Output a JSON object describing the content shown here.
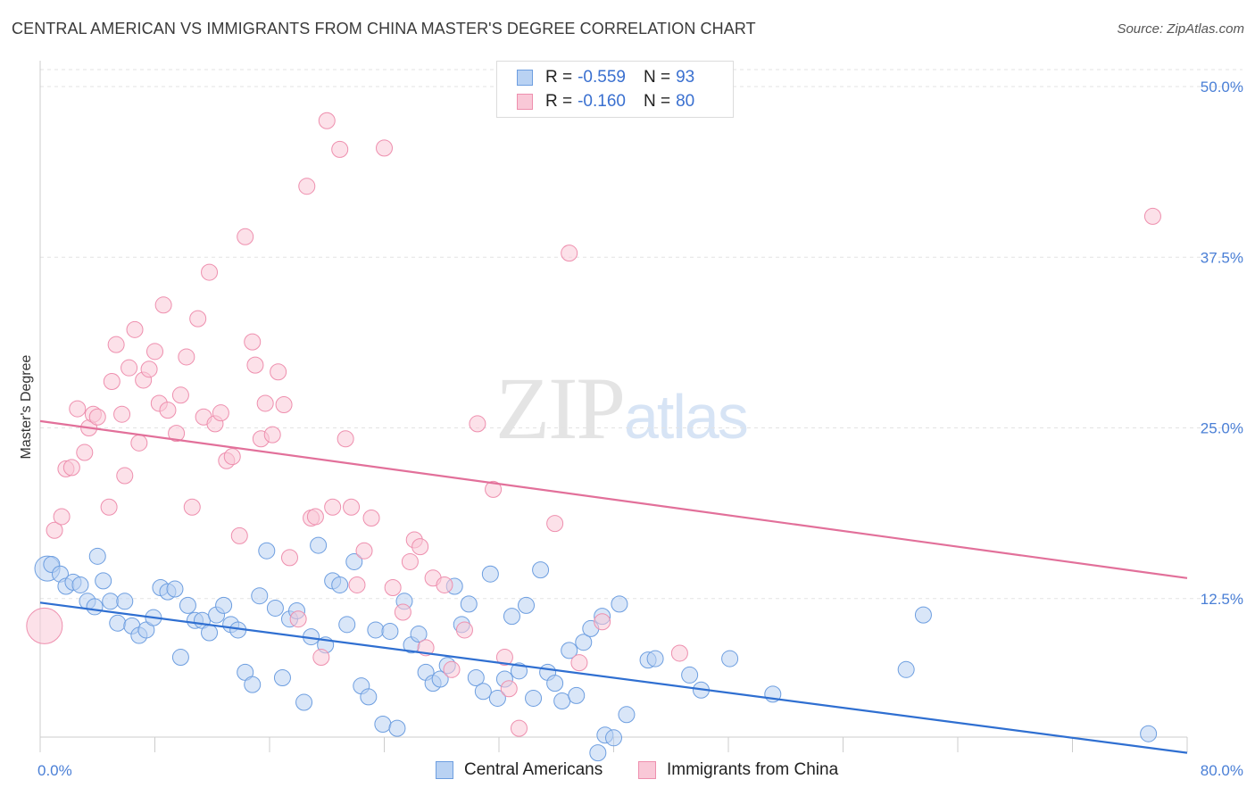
{
  "title": "CENTRAL AMERICAN VS IMMIGRANTS FROM CHINA MASTER'S DEGREE CORRELATION CHART",
  "source": "Source: ZipAtlas.com",
  "watermark": {
    "zip": "ZIP",
    "atlas": "atlas"
  },
  "legend_top": [
    {
      "r_label": "R =",
      "r_value": "-0.559",
      "n_label": "N =",
      "n_value": "93",
      "fill": "#b9d2f3",
      "stroke": "#6d9ee0"
    },
    {
      "r_label": "R =",
      "r_value": "-0.160",
      "n_label": "N =",
      "n_value": "80",
      "fill": "#f9c8d7",
      "stroke": "#ee8fae"
    }
  ],
  "legend_bottom": [
    {
      "label": "Central Americans",
      "fill": "#b9d2f3",
      "stroke": "#6d9ee0"
    },
    {
      "label": "Immigrants from China",
      "fill": "#f9c8d7",
      "stroke": "#ee8fae"
    }
  ],
  "chart_data": {
    "type": "scatter",
    "ylabel": "Master's Degree",
    "xlim": [
      0,
      80
    ],
    "ylim": [
      0,
      50
    ],
    "x_tick_labels": [
      {
        "value": 0,
        "label": "0.0%"
      },
      {
        "value": 80,
        "label": "80.0%"
      }
    ],
    "x_ticks": [
      0,
      8,
      16,
      24,
      32,
      40,
      48,
      56,
      64,
      72,
      80
    ],
    "y_ticks": [
      {
        "value": 12.5,
        "label": "12.5%"
      },
      {
        "value": 25.0,
        "label": "25.0%"
      },
      {
        "value": 37.5,
        "label": "37.5%"
      },
      {
        "value": 50.0,
        "label": "50.0%"
      }
    ],
    "grid": true,
    "series": [
      {
        "name": "Central Americans",
        "color": "#6d9ee0",
        "fill": "#b9d2f3",
        "trend": {
          "x": [
            0,
            80
          ],
          "y": [
            12.2,
            1.2
          ]
        },
        "points": [
          [
            0.5,
            14.7
          ],
          [
            0.8,
            15.0
          ],
          [
            1.4,
            14.3
          ],
          [
            1.8,
            13.4
          ],
          [
            2.3,
            13.7
          ],
          [
            2.8,
            13.5
          ],
          [
            3.3,
            12.3
          ],
          [
            3.8,
            11.9
          ],
          [
            4.4,
            13.8
          ],
          [
            4.9,
            12.3
          ],
          [
            5.4,
            10.7
          ],
          [
            5.9,
            12.3
          ],
          [
            6.4,
            10.5
          ],
          [
            6.9,
            9.8
          ],
          [
            7.4,
            10.2
          ],
          [
            7.9,
            11.1
          ],
          [
            8.4,
            13.3
          ],
          [
            8.9,
            13.0
          ],
          [
            9.4,
            13.2
          ],
          [
            9.8,
            8.2
          ],
          [
            10.3,
            12.0
          ],
          [
            10.8,
            10.9
          ],
          [
            11.3,
            10.9
          ],
          [
            11.8,
            10.0
          ],
          [
            12.3,
            11.3
          ],
          [
            12.8,
            12.0
          ],
          [
            13.3,
            10.6
          ],
          [
            13.8,
            10.2
          ],
          [
            14.3,
            7.1
          ],
          [
            14.8,
            6.2
          ],
          [
            15.3,
            12.7
          ],
          [
            15.8,
            16.0
          ],
          [
            16.4,
            11.8
          ],
          [
            16.9,
            6.7
          ],
          [
            17.4,
            11.0
          ],
          [
            17.9,
            11.6
          ],
          [
            18.4,
            4.9
          ],
          [
            18.9,
            9.7
          ],
          [
            19.4,
            16.4
          ],
          [
            19.9,
            9.1
          ],
          [
            20.4,
            13.8
          ],
          [
            20.9,
            13.5
          ],
          [
            21.4,
            10.6
          ],
          [
            21.9,
            15.2
          ],
          [
            22.4,
            6.1
          ],
          [
            22.9,
            5.3
          ],
          [
            23.4,
            10.2
          ],
          [
            23.9,
            3.3
          ],
          [
            24.4,
            10.1
          ],
          [
            24.9,
            3.0
          ],
          [
            25.4,
            12.3
          ],
          [
            25.9,
            9.1
          ],
          [
            26.4,
            9.9
          ],
          [
            26.9,
            7.1
          ],
          [
            27.4,
            6.3
          ],
          [
            27.9,
            6.6
          ],
          [
            28.4,
            7.6
          ],
          [
            28.9,
            13.4
          ],
          [
            29.4,
            10.6
          ],
          [
            29.9,
            12.1
          ],
          [
            30.4,
            6.7
          ],
          [
            30.9,
            5.7
          ],
          [
            31.4,
            14.3
          ],
          [
            31.9,
            5.2
          ],
          [
            32.4,
            6.6
          ],
          [
            32.9,
            11.2
          ],
          [
            33.4,
            7.2
          ],
          [
            33.9,
            12.0
          ],
          [
            34.4,
            5.2
          ],
          [
            34.9,
            14.6
          ],
          [
            35.4,
            7.1
          ],
          [
            35.9,
            6.3
          ],
          [
            36.4,
            5.0
          ],
          [
            36.9,
            8.7
          ],
          [
            37.4,
            5.4
          ],
          [
            37.9,
            9.3
          ],
          [
            38.4,
            10.3
          ],
          [
            38.9,
            1.2
          ],
          [
            39.2,
            11.2
          ],
          [
            39.4,
            2.5
          ],
          [
            40.0,
            2.3
          ],
          [
            40.4,
            12.1
          ],
          [
            40.9,
            4.0
          ],
          [
            42.4,
            8.0
          ],
          [
            42.9,
            8.1
          ],
          [
            45.3,
            6.9
          ],
          [
            46.1,
            5.8
          ],
          [
            48.1,
            8.1
          ],
          [
            51.1,
            5.5
          ],
          [
            60.4,
            7.3
          ],
          [
            61.6,
            11.3
          ],
          [
            77.3,
            2.6
          ],
          [
            4.0,
            15.6
          ]
        ]
      },
      {
        "name": "Immigrants from China",
        "color": "#ee8fae",
        "fill": "#f9c8d7",
        "trend": {
          "x": [
            0,
            80
          ],
          "y": [
            25.5,
            14.0
          ]
        },
        "points": [
          [
            0.3,
            10.5
          ],
          [
            1.0,
            17.5
          ],
          [
            1.5,
            18.5
          ],
          [
            1.8,
            22.0
          ],
          [
            2.2,
            22.1
          ],
          [
            2.6,
            26.4
          ],
          [
            3.1,
            23.2
          ],
          [
            3.4,
            25.0
          ],
          [
            3.7,
            26.0
          ],
          [
            4.0,
            25.8
          ],
          [
            4.8,
            19.2
          ],
          [
            5.0,
            28.4
          ],
          [
            5.3,
            31.1
          ],
          [
            5.7,
            26.0
          ],
          [
            5.9,
            21.5
          ],
          [
            6.2,
            29.4
          ],
          [
            6.6,
            32.2
          ],
          [
            6.9,
            23.9
          ],
          [
            7.2,
            28.5
          ],
          [
            7.6,
            29.3
          ],
          [
            8.0,
            30.6
          ],
          [
            8.3,
            26.8
          ],
          [
            8.6,
            34.0
          ],
          [
            8.9,
            26.3
          ],
          [
            9.5,
            24.6
          ],
          [
            9.8,
            27.4
          ],
          [
            10.2,
            30.2
          ],
          [
            10.6,
            19.2
          ],
          [
            11.0,
            33.0
          ],
          [
            11.4,
            25.8
          ],
          [
            11.8,
            36.4
          ],
          [
            12.2,
            25.3
          ],
          [
            12.6,
            26.1
          ],
          [
            13.0,
            22.6
          ],
          [
            13.4,
            22.9
          ],
          [
            13.9,
            17.1
          ],
          [
            14.3,
            39.0
          ],
          [
            14.8,
            31.3
          ],
          [
            15.0,
            29.6
          ],
          [
            15.4,
            24.2
          ],
          [
            15.7,
            26.8
          ],
          [
            16.2,
            24.5
          ],
          [
            16.6,
            29.1
          ],
          [
            17.0,
            26.7
          ],
          [
            17.4,
            15.5
          ],
          [
            18.0,
            11.0
          ],
          [
            18.6,
            42.7
          ],
          [
            18.9,
            18.4
          ],
          [
            19.2,
            18.5
          ],
          [
            19.6,
            8.2
          ],
          [
            20.0,
            47.5
          ],
          [
            20.4,
            19.2
          ],
          [
            20.9,
            45.4
          ],
          [
            21.3,
            24.2
          ],
          [
            21.7,
            19.2
          ],
          [
            22.1,
            13.5
          ],
          [
            22.6,
            16.0
          ],
          [
            23.1,
            18.4
          ],
          [
            24.0,
            45.5
          ],
          [
            24.6,
            13.3
          ],
          [
            25.3,
            11.5
          ],
          [
            25.8,
            15.2
          ],
          [
            26.1,
            16.8
          ],
          [
            26.5,
            16.3
          ],
          [
            26.9,
            8.9
          ],
          [
            27.4,
            14.0
          ],
          [
            28.2,
            13.5
          ],
          [
            28.7,
            7.3
          ],
          [
            29.6,
            10.2
          ],
          [
            30.5,
            25.3
          ],
          [
            31.6,
            20.5
          ],
          [
            32.4,
            8.2
          ],
          [
            32.7,
            5.9
          ],
          [
            33.4,
            3.0
          ],
          [
            35.9,
            18.0
          ],
          [
            36.9,
            37.8
          ],
          [
            37.6,
            7.8
          ],
          [
            39.2,
            10.8
          ],
          [
            44.6,
            8.5
          ],
          [
            77.6,
            40.5
          ]
        ]
      }
    ]
  }
}
